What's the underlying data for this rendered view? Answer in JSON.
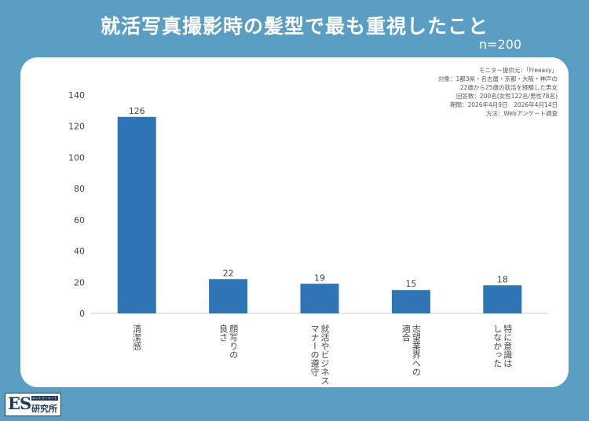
{
  "header": {
    "title": "就活写真撮影時の髪型で最も重視したこと",
    "sample_size": "n=200"
  },
  "source_note": {
    "lines": [
      "モニター提供元：「Freeasy」",
      "対象：1都3県・名古屋・京都・大阪・神戸の",
      "22歳から25歳の就活を経験した男女",
      "回答数：200名(女性122名/男性78名)",
      "期間：2026年4月9日　2026年4月14日",
      "方法：Webアンケート調査"
    ]
  },
  "logo": {
    "main": "ES",
    "sub": "エントリーシート",
    "kanji": "研究所"
  },
  "colors": {
    "background": "#5a9ec4",
    "bar": "#2e75b6",
    "axis_text": "#444444"
  },
  "chart_data": {
    "type": "bar",
    "title": "就活写真撮影時の髪型で最も重視したこと",
    "categories": [
      "清潔感",
      "顔写りの良さ",
      "就活やビジネスマナーの遵守",
      "志望業界への適合",
      "特に意識はしなかった"
    ],
    "category_lines": [
      [
        "清潔感"
      ],
      [
        "顔写りの",
        "良さ"
      ],
      [
        "就活やビジネス",
        "マナーの遵守"
      ],
      [
        "志望業界への",
        "適合"
      ],
      [
        "特に意識は",
        "しなかった"
      ]
    ],
    "values": [
      126,
      22,
      19,
      15,
      18
    ],
    "ylim": [
      0,
      140
    ],
    "yticks": [
      0,
      20,
      40,
      60,
      80,
      100,
      120,
      140
    ],
    "xlabel": "",
    "ylabel": "",
    "grid": false,
    "legend": "none"
  }
}
